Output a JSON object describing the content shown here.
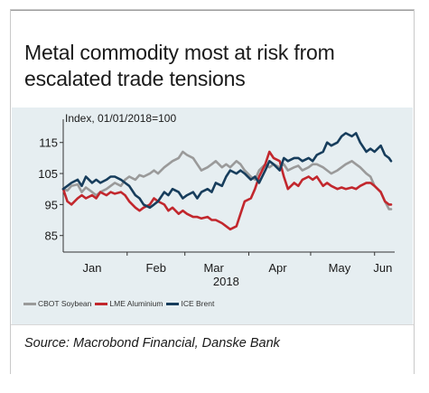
{
  "header": {
    "title_line1": "Metal commodity most at risk from",
    "title_line2": "escalated trade tensions"
  },
  "footer": {
    "source": "Source: Macrobond Financial, Danske Bank"
  },
  "chart_data": {
    "type": "line",
    "title": "Metal commodity most at risk from escalated trade tensions",
    "axis_note": "Index, 01/01/2018=100",
    "xlabel": "2018",
    "ylabel": "",
    "xlim": [
      "2018-01-01",
      "2018-06-09"
    ],
    "ylim": [
      82,
      119
    ],
    "yticks": [
      85,
      95,
      105,
      115
    ],
    "xticks": [
      {
        "label": "Jan",
        "date": "2018-01-15"
      },
      {
        "label": "Feb",
        "date": "2018-02-15"
      },
      {
        "label": "Mar",
        "date": "2018-03-15"
      },
      {
        "label": "Apr",
        "date": "2018-04-15"
      },
      {
        "label": "May",
        "date": "2018-05-15"
      },
      {
        "label": "Jun",
        "date": "2018-06-05"
      }
    ],
    "grid": false,
    "legend_position": "bottom",
    "series": [
      {
        "name": "CBOT Soybean",
        "color": "#9a9a9a",
        "points": [
          [
            "2018-01-01",
            100
          ],
          [
            "2018-01-03",
            99.5
          ],
          [
            "2018-01-05",
            101
          ],
          [
            "2018-01-08",
            101.5
          ],
          [
            "2018-01-10",
            99
          ],
          [
            "2018-01-12",
            100.5
          ],
          [
            "2018-01-15",
            99
          ],
          [
            "2018-01-17",
            98
          ],
          [
            "2018-01-19",
            99
          ],
          [
            "2018-01-22",
            100
          ],
          [
            "2018-01-24",
            101
          ],
          [
            "2018-01-26",
            102
          ],
          [
            "2018-01-29",
            101
          ],
          [
            "2018-01-31",
            103
          ],
          [
            "2018-02-02",
            104
          ],
          [
            "2018-02-05",
            103
          ],
          [
            "2018-02-07",
            104.5
          ],
          [
            "2018-02-09",
            104
          ],
          [
            "2018-02-12",
            105
          ],
          [
            "2018-02-14",
            106
          ],
          [
            "2018-02-16",
            105
          ],
          [
            "2018-02-19",
            107
          ],
          [
            "2018-02-21",
            108
          ],
          [
            "2018-02-23",
            109
          ],
          [
            "2018-02-26",
            110
          ],
          [
            "2018-02-28",
            112
          ],
          [
            "2018-03-02",
            111
          ],
          [
            "2018-03-05",
            110
          ],
          [
            "2018-03-07",
            108
          ],
          [
            "2018-03-09",
            106
          ],
          [
            "2018-03-12",
            107
          ],
          [
            "2018-03-14",
            108
          ],
          [
            "2018-03-16",
            109
          ],
          [
            "2018-03-19",
            107
          ],
          [
            "2018-03-21",
            108
          ],
          [
            "2018-03-23",
            107
          ],
          [
            "2018-03-26",
            109
          ],
          [
            "2018-03-28",
            108
          ],
          [
            "2018-03-30",
            106
          ],
          [
            "2018-04-02",
            104
          ],
          [
            "2018-04-04",
            103
          ],
          [
            "2018-04-06",
            106
          ],
          [
            "2018-04-09",
            108
          ],
          [
            "2018-04-11",
            107
          ],
          [
            "2018-04-13",
            108
          ],
          [
            "2018-04-16",
            107
          ],
          [
            "2018-04-18",
            108
          ],
          [
            "2018-04-20",
            106
          ],
          [
            "2018-04-23",
            107
          ],
          [
            "2018-04-25",
            107.5
          ],
          [
            "2018-04-27",
            106
          ],
          [
            "2018-04-30",
            107
          ],
          [
            "2018-05-02",
            108
          ],
          [
            "2018-05-04",
            108
          ],
          [
            "2018-05-07",
            107
          ],
          [
            "2018-05-09",
            106
          ],
          [
            "2018-05-11",
            105
          ],
          [
            "2018-05-14",
            106
          ],
          [
            "2018-05-16",
            107
          ],
          [
            "2018-05-18",
            108
          ],
          [
            "2018-05-21",
            109
          ],
          [
            "2018-05-23",
            108
          ],
          [
            "2018-05-25",
            107
          ],
          [
            "2018-05-28",
            105
          ],
          [
            "2018-05-30",
            104
          ],
          [
            "2018-06-01",
            101
          ],
          [
            "2018-06-04",
            99
          ],
          [
            "2018-06-06",
            96
          ],
          [
            "2018-06-08",
            93.5
          ],
          [
            "2018-06-09",
            93.5
          ]
        ]
      },
      {
        "name": "LME Aluminium",
        "color": "#c2272d",
        "points": [
          [
            "2018-01-01",
            100
          ],
          [
            "2018-01-03",
            96
          ],
          [
            "2018-01-05",
            95
          ],
          [
            "2018-01-08",
            97
          ],
          [
            "2018-01-10",
            98
          ],
          [
            "2018-01-12",
            97
          ],
          [
            "2018-01-15",
            98
          ],
          [
            "2018-01-17",
            97
          ],
          [
            "2018-01-19",
            99
          ],
          [
            "2018-01-22",
            98
          ],
          [
            "2018-01-24",
            99
          ],
          [
            "2018-01-26",
            98.5
          ],
          [
            "2018-01-29",
            99
          ],
          [
            "2018-01-31",
            98
          ],
          [
            "2018-02-02",
            96
          ],
          [
            "2018-02-05",
            94
          ],
          [
            "2018-02-07",
            93
          ],
          [
            "2018-02-09",
            94
          ],
          [
            "2018-02-12",
            95
          ],
          [
            "2018-02-14",
            97
          ],
          [
            "2018-02-16",
            96
          ],
          [
            "2018-02-19",
            95
          ],
          [
            "2018-02-21",
            93
          ],
          [
            "2018-02-23",
            94
          ],
          [
            "2018-02-26",
            92
          ],
          [
            "2018-02-28",
            93
          ],
          [
            "2018-03-02",
            92
          ],
          [
            "2018-03-05",
            91
          ],
          [
            "2018-03-07",
            91
          ],
          [
            "2018-03-09",
            90.5
          ],
          [
            "2018-03-12",
            91
          ],
          [
            "2018-03-14",
            90
          ],
          [
            "2018-03-16",
            90
          ],
          [
            "2018-03-19",
            89
          ],
          [
            "2018-03-21",
            88
          ],
          [
            "2018-03-23",
            87
          ],
          [
            "2018-03-26",
            88
          ],
          [
            "2018-03-28",
            92
          ],
          [
            "2018-03-30",
            96
          ],
          [
            "2018-04-02",
            97
          ],
          [
            "2018-04-04",
            100
          ],
          [
            "2018-04-06",
            104
          ],
          [
            "2018-04-09",
            108
          ],
          [
            "2018-04-11",
            112
          ],
          [
            "2018-04-13",
            110
          ],
          [
            "2018-04-16",
            109
          ],
          [
            "2018-04-18",
            104
          ],
          [
            "2018-04-20",
            100
          ],
          [
            "2018-04-23",
            102
          ],
          [
            "2018-04-25",
            101
          ],
          [
            "2018-04-27",
            103
          ],
          [
            "2018-04-30",
            104
          ],
          [
            "2018-05-02",
            103
          ],
          [
            "2018-05-04",
            104
          ],
          [
            "2018-05-07",
            101
          ],
          [
            "2018-05-09",
            102
          ],
          [
            "2018-05-11",
            101
          ],
          [
            "2018-05-14",
            100
          ],
          [
            "2018-05-16",
            100.5
          ],
          [
            "2018-05-18",
            100
          ],
          [
            "2018-05-21",
            100.5
          ],
          [
            "2018-05-23",
            100
          ],
          [
            "2018-05-25",
            101
          ],
          [
            "2018-05-28",
            102
          ],
          [
            "2018-05-30",
            102
          ],
          [
            "2018-06-01",
            101
          ],
          [
            "2018-06-04",
            99
          ],
          [
            "2018-06-06",
            96
          ],
          [
            "2018-06-08",
            95
          ],
          [
            "2018-06-09",
            95
          ]
        ]
      },
      {
        "name": "ICE Brent",
        "color": "#173d5c",
        "points": [
          [
            "2018-01-01",
            100
          ],
          [
            "2018-01-03",
            101
          ],
          [
            "2018-01-05",
            102
          ],
          [
            "2018-01-08",
            103
          ],
          [
            "2018-01-10",
            101
          ],
          [
            "2018-01-12",
            104
          ],
          [
            "2018-01-15",
            102
          ],
          [
            "2018-01-17",
            103
          ],
          [
            "2018-01-19",
            102
          ],
          [
            "2018-01-22",
            103
          ],
          [
            "2018-01-24",
            104
          ],
          [
            "2018-01-26",
            104
          ],
          [
            "2018-01-29",
            103
          ],
          [
            "2018-01-31",
            102
          ],
          [
            "2018-02-02",
            101
          ],
          [
            "2018-02-05",
            98
          ],
          [
            "2018-02-07",
            97
          ],
          [
            "2018-02-09",
            95
          ],
          [
            "2018-02-12",
            94
          ],
          [
            "2018-02-14",
            95
          ],
          [
            "2018-02-16",
            96
          ],
          [
            "2018-02-19",
            99
          ],
          [
            "2018-02-21",
            98
          ],
          [
            "2018-02-23",
            100
          ],
          [
            "2018-02-26",
            99
          ],
          [
            "2018-02-28",
            97
          ],
          [
            "2018-03-02",
            98
          ],
          [
            "2018-03-05",
            99
          ],
          [
            "2018-03-07",
            97
          ],
          [
            "2018-03-09",
            99
          ],
          [
            "2018-03-12",
            100
          ],
          [
            "2018-03-14",
            99
          ],
          [
            "2018-03-16",
            102
          ],
          [
            "2018-03-19",
            101
          ],
          [
            "2018-03-21",
            104
          ],
          [
            "2018-03-23",
            106
          ],
          [
            "2018-03-26",
            105
          ],
          [
            "2018-03-28",
            106
          ],
          [
            "2018-03-30",
            105
          ],
          [
            "2018-04-02",
            103
          ],
          [
            "2018-04-04",
            104
          ],
          [
            "2018-04-06",
            102
          ],
          [
            "2018-04-09",
            106
          ],
          [
            "2018-04-11",
            109
          ],
          [
            "2018-04-13",
            108
          ],
          [
            "2018-04-16",
            106
          ],
          [
            "2018-04-18",
            110
          ],
          [
            "2018-04-20",
            109
          ],
          [
            "2018-04-23",
            110
          ],
          [
            "2018-04-25",
            110
          ],
          [
            "2018-04-27",
            109
          ],
          [
            "2018-04-30",
            110
          ],
          [
            "2018-05-02",
            109
          ],
          [
            "2018-05-04",
            111
          ],
          [
            "2018-05-07",
            112
          ],
          [
            "2018-05-09",
            115
          ],
          [
            "2018-05-11",
            114
          ],
          [
            "2018-05-14",
            115
          ],
          [
            "2018-05-16",
            117
          ],
          [
            "2018-05-18",
            118
          ],
          [
            "2018-05-21",
            117
          ],
          [
            "2018-05-23",
            118
          ],
          [
            "2018-05-25",
            115
          ],
          [
            "2018-05-28",
            112
          ],
          [
            "2018-05-30",
            113
          ],
          [
            "2018-06-01",
            112
          ],
          [
            "2018-06-04",
            114
          ],
          [
            "2018-06-06",
            111
          ],
          [
            "2018-06-08",
            110
          ],
          [
            "2018-06-09",
            109
          ]
        ]
      }
    ]
  }
}
